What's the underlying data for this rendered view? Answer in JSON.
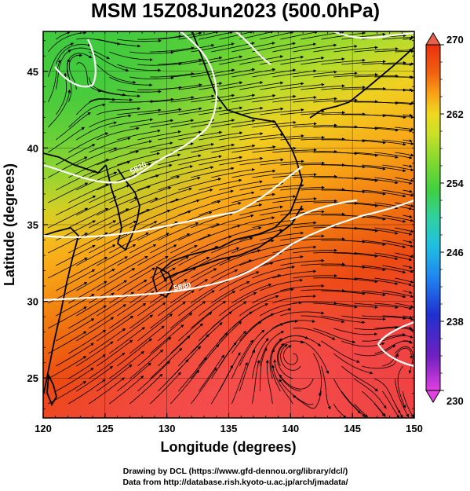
{
  "title": "MSM 15Z08Jun2023 (500.0hPa)",
  "x_axis": {
    "label": "Longitude (degrees)",
    "range": [
      120,
      150
    ],
    "ticks": [
      "120",
      "125",
      "130",
      "135",
      "140",
      "145",
      "150"
    ]
  },
  "y_axis": {
    "label": "Latitude  (degrees)",
    "range": [
      22.4,
      47.6
    ],
    "ticks": [
      "25",
      "30",
      "35",
      "40",
      "45"
    ]
  },
  "colorbar": {
    "range": [
      230,
      270
    ],
    "ticks": [
      "230",
      "238",
      "246",
      "254",
      "262",
      "270"
    ],
    "colors": [
      "#e040e0",
      "#7020c0",
      "#2030d0",
      "#2080f0",
      "#20c0e0",
      "#30d0a0",
      "#40d040",
      "#80d830",
      "#c8e028",
      "#f0d820",
      "#f8a018",
      "#f06010",
      "#e83010",
      "#f04040"
    ]
  },
  "contour_labels": [
    "5820",
    "5880"
  ],
  "credits": {
    "line1": "Drawing by DCL (https://www.gfd-dennou.org/library/dcl/)",
    "line2": "Data from http://database.rish.kyoto-u.ac.jp/arch/jmadata/"
  },
  "colors": {
    "frame": "#000000",
    "contour": "#ffffff",
    "coast": "#000000",
    "stream": "#000000"
  }
}
